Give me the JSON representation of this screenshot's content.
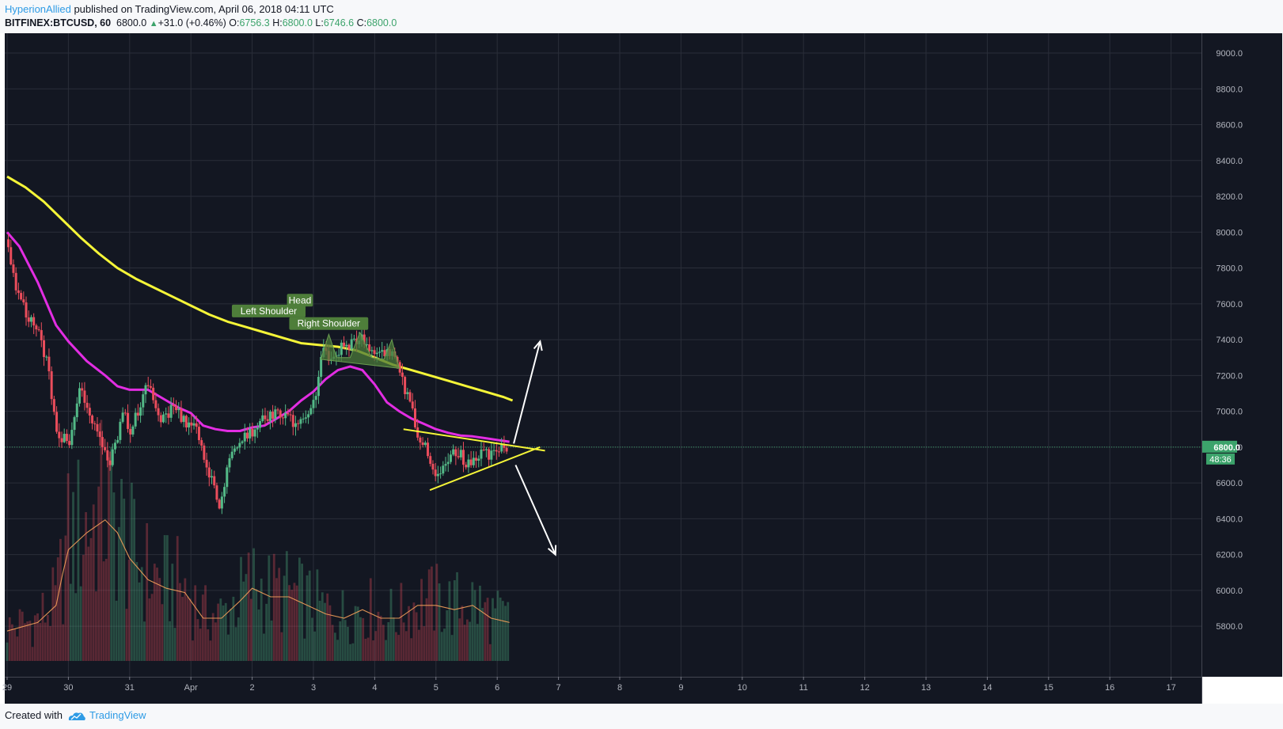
{
  "header": {
    "author": "HyperionAllied",
    "published": "published on TradingView.com, April 06, 2018 04:11 UTC"
  },
  "symbol_bar": {
    "symbol": "BITFINEX:BTCUSD, 60",
    "last": "6800.0",
    "change": "+31.0 (+0.46%)",
    "o_label": "O:",
    "o": "6756.3",
    "h_label": "H:",
    "h": "6800.0",
    "l_label": "L:",
    "l": "6746.6",
    "c_label": "C:",
    "c": "6800.0"
  },
  "footer": {
    "created_with": "Created with",
    "brand": "TradingView"
  },
  "colors": {
    "background": "#131722",
    "grid": "#2a2e39",
    "up": "#53b987",
    "down": "#eb4d5c",
    "ma_fast": "#e22de2",
    "ma_slow": "#f5f538",
    "volume_ma": "#f5a05a",
    "pattern_fill": "#4b7a3a",
    "trendline": "#f5f538",
    "arrow": "#ffffff",
    "price_tag": "#3ca36b"
  },
  "chart_data": {
    "type": "candlestick",
    "interval": "60",
    "ylim": [
      5620,
      9250
    ],
    "x_ticks": [
      "29",
      "30",
      "31",
      "Apr",
      "2",
      "3",
      "4",
      "5",
      "6",
      "7",
      "8",
      "9",
      "10",
      "11",
      "12",
      "13",
      "14",
      "15",
      "16",
      "17"
    ],
    "y_ticks": [
      "9000.0",
      "8800.0",
      "8600.0",
      "8400.0",
      "8200.0",
      "8000.0",
      "7800.0",
      "7600.0",
      "7400.0",
      "7200.0",
      "7000.0",
      "6800.0",
      "6600.0",
      "6400.0",
      "6200.0",
      "6000.0",
      "5800.0"
    ],
    "price_path": [
      [
        29.0,
        7930
      ],
      [
        29.15,
        7700
      ],
      [
        29.35,
        7520
      ],
      [
        29.5,
        7440
      ],
      [
        29.65,
        7280
      ],
      [
        29.8,
        6880
      ],
      [
        30.0,
        6820
      ],
      [
        30.2,
        7150
      ],
      [
        30.35,
        6950
      ],
      [
        30.5,
        6860
      ],
      [
        30.65,
        6690
      ],
      [
        30.8,
        6860
      ],
      [
        30.9,
        7050
      ],
      [
        31.0,
        6880
      ],
      [
        31.15,
        7010
      ],
      [
        31.25,
        7130
      ],
      [
        31.4,
        7080
      ],
      [
        31.5,
        6950
      ],
      [
        31.6,
        6990
      ],
      [
        31.75,
        7020
      ],
      [
        31.85,
        6950
      ],
      [
        32.0,
        6930
      ],
      [
        32.1,
        6890
      ],
      [
        32.25,
        6690
      ],
      [
        32.35,
        6600
      ],
      [
        32.45,
        6450
      ],
      [
        32.6,
        6700
      ],
      [
        32.75,
        6820
      ],
      [
        32.9,
        6880
      ],
      [
        33.0,
        6870
      ],
      [
        33.15,
        6940
      ],
      [
        33.3,
        6990
      ],
      [
        33.45,
        6970
      ],
      [
        33.6,
        6970
      ],
      [
        33.75,
        6900
      ],
      [
        33.9,
        6980
      ],
      [
        34.0,
        7050
      ],
      [
        34.08,
        7180
      ],
      [
        34.15,
        7330
      ],
      [
        34.3,
        7300
      ],
      [
        34.45,
        7350
      ],
      [
        34.6,
        7360
      ],
      [
        34.75,
        7420
      ],
      [
        34.9,
        7350
      ],
      [
        35.0,
        7320
      ],
      [
        35.15,
        7310
      ],
      [
        35.3,
        7340
      ],
      [
        35.4,
        7260
      ],
      [
        35.5,
        7100
      ],
      [
        35.6,
        7040
      ],
      [
        35.7,
        6880
      ],
      [
        35.85,
        6790
      ],
      [
        36.0,
        6650
      ],
      [
        36.08,
        6650
      ],
      [
        36.2,
        6740
      ],
      [
        36.35,
        6780
      ],
      [
        36.5,
        6700
      ],
      [
        36.6,
        6730
      ],
      [
        36.75,
        6770
      ],
      [
        36.9,
        6760
      ],
      [
        37.0,
        6770
      ],
      [
        37.15,
        6800
      ]
    ],
    "ma_fast": [
      [
        29.0,
        8000
      ],
      [
        29.2,
        7920
      ],
      [
        29.5,
        7720
      ],
      [
        29.8,
        7480
      ],
      [
        30.0,
        7390
      ],
      [
        30.3,
        7280
      ],
      [
        30.6,
        7200
      ],
      [
        30.8,
        7140
      ],
      [
        31.0,
        7120
      ],
      [
        31.3,
        7120
      ],
      [
        31.6,
        7060
      ],
      [
        31.8,
        7020
      ],
      [
        32.0,
        6990
      ],
      [
        32.2,
        6920
      ],
      [
        32.4,
        6900
      ],
      [
        32.6,
        6890
      ],
      [
        32.8,
        6890
      ],
      [
        33.0,
        6910
      ],
      [
        33.2,
        6920
      ],
      [
        33.4,
        6960
      ],
      [
        33.6,
        7000
      ],
      [
        33.8,
        7060
      ],
      [
        34.0,
        7110
      ],
      [
        34.2,
        7180
      ],
      [
        34.4,
        7230
      ],
      [
        34.6,
        7250
      ],
      [
        34.8,
        7230
      ],
      [
        35.0,
        7150
      ],
      [
        35.2,
        7050
      ],
      [
        35.4,
        7000
      ],
      [
        35.6,
        6960
      ],
      [
        35.8,
        6930
      ],
      [
        36.0,
        6900
      ],
      [
        36.2,
        6880
      ],
      [
        36.4,
        6865
      ],
      [
        36.6,
        6860
      ],
      [
        36.8,
        6850
      ],
      [
        37.0,
        6840
      ],
      [
        37.2,
        6830
      ]
    ],
    "ma_slow": [
      [
        29.0,
        8310
      ],
      [
        29.3,
        8250
      ],
      [
        29.6,
        8170
      ],
      [
        29.9,
        8070
      ],
      [
        30.2,
        7970
      ],
      [
        30.5,
        7880
      ],
      [
        30.8,
        7800
      ],
      [
        31.1,
        7740
      ],
      [
        31.4,
        7690
      ],
      [
        31.7,
        7640
      ],
      [
        32.0,
        7590
      ],
      [
        32.3,
        7540
      ],
      [
        32.6,
        7500
      ],
      [
        32.9,
        7470
      ],
      [
        33.2,
        7440
      ],
      [
        33.5,
        7410
      ],
      [
        33.8,
        7380
      ],
      [
        34.1,
        7370
      ],
      [
        34.4,
        7360
      ],
      [
        34.7,
        7340
      ],
      [
        35.0,
        7300
      ],
      [
        35.3,
        7260
      ],
      [
        35.6,
        7230
      ],
      [
        35.9,
        7200
      ],
      [
        36.2,
        7170
      ],
      [
        36.5,
        7140
      ],
      [
        36.8,
        7110
      ],
      [
        37.1,
        7080
      ],
      [
        37.25,
        7060
      ]
    ],
    "volume_ma_rel": [
      [
        29.0,
        0.07
      ],
      [
        29.5,
        0.09
      ],
      [
        29.8,
        0.13
      ],
      [
        29.9,
        0.2
      ],
      [
        30.0,
        0.26
      ],
      [
        30.3,
        0.3
      ],
      [
        30.6,
        0.33
      ],
      [
        30.8,
        0.3
      ],
      [
        31.0,
        0.24
      ],
      [
        31.3,
        0.19
      ],
      [
        31.6,
        0.17
      ],
      [
        31.9,
        0.16
      ],
      [
        32.0,
        0.14
      ],
      [
        32.2,
        0.1
      ],
      [
        32.5,
        0.1
      ],
      [
        32.8,
        0.14
      ],
      [
        33.0,
        0.17
      ],
      [
        33.3,
        0.15
      ],
      [
        33.6,
        0.15
      ],
      [
        33.9,
        0.13
      ],
      [
        34.2,
        0.11
      ],
      [
        34.5,
        0.1
      ],
      [
        34.8,
        0.12
      ],
      [
        35.1,
        0.1
      ],
      [
        35.4,
        0.1
      ],
      [
        35.7,
        0.13
      ],
      [
        36.0,
        0.13
      ],
      [
        36.3,
        0.12
      ],
      [
        36.6,
        0.13
      ],
      [
        36.9,
        0.1
      ],
      [
        37.2,
        0.09
      ]
    ],
    "annotations": [
      {
        "text": "Left Shoulder",
        "x": 33.27,
        "y": 7560
      },
      {
        "text": "Head",
        "x": 33.78,
        "y": 7620
      },
      {
        "text": "Right Shoulder",
        "x": 34.25,
        "y": 7490
      }
    ],
    "head_shoulders_pattern": [
      [
        34.12,
        7290
      ],
      [
        34.25,
        7430
      ],
      [
        34.38,
        7300
      ],
      [
        34.6,
        7300
      ],
      [
        34.76,
        7440
      ],
      [
        34.95,
        7300
      ],
      [
        35.15,
        7290
      ],
      [
        35.28,
        7400
      ],
      [
        35.4,
        7240
      ]
    ],
    "trendline_upper": [
      [
        35.47,
        6900
      ],
      [
        37.78,
        6780
      ]
    ],
    "trendline_lower": [
      [
        35.9,
        6560
      ],
      [
        37.7,
        6800
      ]
    ],
    "arrow_up": [
      [
        37.27,
        6820
      ],
      [
        37.7,
        7390
      ]
    ],
    "arrow_down": [
      [
        37.3,
        6700
      ],
      [
        37.95,
        6200
      ]
    ],
    "last_price": "6800.0",
    "countdown": "48:36"
  }
}
